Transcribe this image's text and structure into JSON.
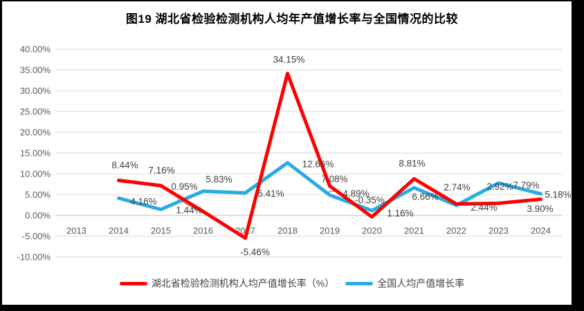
{
  "window": {
    "background": "#FFFFFF",
    "frame_color": "#000000"
  },
  "chart_data": {
    "type": "line",
    "title": "图19 湖北省检验检测机构人均年产值增长率与全国情况的比较",
    "categories": [
      "2013",
      "2014",
      "2015",
      "2016",
      "2017",
      "2018",
      "2019",
      "2020",
      "2021",
      "2022",
      "2023",
      "2024"
    ],
    "series": [
      {
        "name": "湖北省检验检测机构人均产值增长率（%）",
        "color": "#FF0000",
        "values": [
          null,
          8.44,
          7.16,
          0.95,
          -5.46,
          34.15,
          7.08,
          -0.35,
          8.81,
          2.74,
          2.92,
          3.9
        ]
      },
      {
        "name": "全国人均产值增长率",
        "color": "#29ABE2",
        "values": [
          null,
          4.16,
          1.44,
          5.83,
          5.41,
          12.66,
          4.89,
          1.16,
          6.66,
          2.44,
          7.79,
          5.18
        ]
      }
    ],
    "ylim": [
      -10,
      40
    ],
    "ytick_step": 5,
    "ytick_labels": [
      "-10.00%",
      "-5.00%",
      "0.00%",
      "5.00%",
      "10.00%",
      "15.00%",
      "20.00%",
      "25.00%",
      "30.00%",
      "35.00%",
      "40.00%"
    ],
    "grid": true,
    "data_labels_shown": true,
    "legend_position": "bottom",
    "axis_label_color": "#595959",
    "data_label_color": "#3F3F3F",
    "gridline_color": "#D9D9D9",
    "zero_line_color": "#BFBFBF",
    "leader_line_color": "#A6A6A6"
  }
}
